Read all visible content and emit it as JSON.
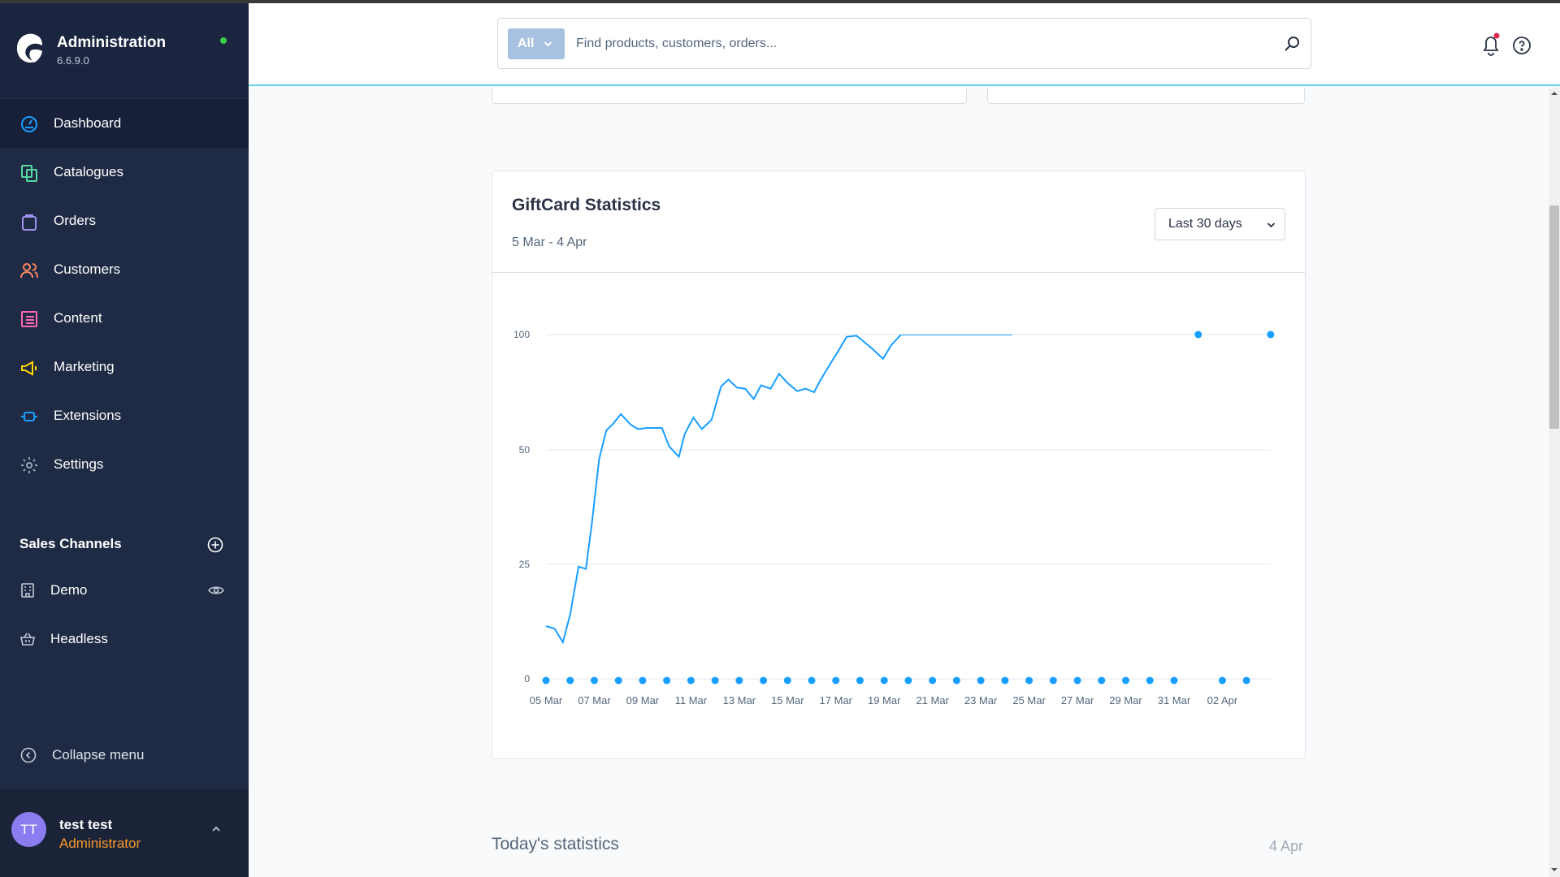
{
  "brand": {
    "title": "Administration",
    "version": "6.6.9.0"
  },
  "nav": {
    "items": [
      {
        "label": "Dashboard",
        "icon": "dashboard-icon",
        "color": "#189eff"
      },
      {
        "label": "Catalogues",
        "icon": "catalogue-icon",
        "color": "#57d9a3"
      },
      {
        "label": "Orders",
        "icon": "orders-icon",
        "color": "#a092f0"
      },
      {
        "label": "Customers",
        "icon": "customers-icon",
        "color": "#f88962"
      },
      {
        "label": "Content",
        "icon": "content-icon",
        "color": "#ff68b4"
      },
      {
        "label": "Marketing",
        "icon": "marketing-icon",
        "color": "#ffd700"
      },
      {
        "label": "Extensions",
        "icon": "extensions-icon",
        "color": "#189eff"
      },
      {
        "label": "Settings",
        "icon": "settings-icon",
        "color": "#9aa8b5"
      }
    ]
  },
  "sales_channels": {
    "header": "Sales Channels",
    "items": [
      {
        "label": "Demo",
        "icon": "storefront-icon"
      },
      {
        "label": "Headless",
        "icon": "basket-icon"
      }
    ]
  },
  "collapse_label": "Collapse menu",
  "user": {
    "initials": "TT",
    "name": "test test",
    "role": "Administrator"
  },
  "search": {
    "type_label": "All",
    "placeholder": "Find products, customers, orders..."
  },
  "giftcard": {
    "title": "GiftCard Statistics",
    "date_range": "5 Mar - 4 Apr",
    "range_select": "Last 30 days"
  },
  "chart_data": {
    "type": "line",
    "title": "GiftCard Statistics",
    "y_ticks": [
      "0",
      "25",
      "50",
      "100"
    ],
    "x_ticks": [
      "05 Mar",
      "07 Mar",
      "09 Mar",
      "11 Mar",
      "13 Mar",
      "15 Mar",
      "17 Mar",
      "19 Mar",
      "21 Mar",
      "23 Mar",
      "25 Mar",
      "27 Mar",
      "29 Mar",
      "31 Mar",
      "02 Apr"
    ],
    "grid": true,
    "line_color": "#189eff",
    "series": [
      {
        "line_x_days": [
          0,
          0.35,
          0.7,
          1.0,
          1.35,
          1.65,
          1.9,
          2.2,
          2.5,
          2.75,
          3.1,
          3.5,
          3.8,
          4.2,
          4.5,
          4.8,
          5.1,
          5.5,
          5.75,
          6.1,
          6.45,
          6.85,
          7.25,
          7.55,
          7.9,
          8.25,
          8.6,
          8.9,
          9.3,
          9.65,
          10.0,
          10.4,
          10.75,
          11.1,
          11.35,
          11.75,
          12.05,
          12.45,
          12.85,
          13.15,
          13.55,
          13.95,
          14.3,
          14.7,
          15.0,
          15.35,
          15.75,
          16.1,
          16.5,
          16.85,
          17.15,
          17.55,
          17.9,
          18.25,
          18.55,
          18.95,
          19.3
        ],
        "line_y": [
          11.5,
          11.0,
          8.0,
          14.0,
          24.5,
          24.0,
          34.0,
          48.0,
          58.5,
          61.0,
          65.5,
          61.0,
          59.0,
          59.5,
          59.5,
          59.5,
          51.5,
          48.5,
          57.0,
          64.0,
          59.0,
          63.0,
          77.5,
          80.5,
          77.0,
          76.5,
          72.0,
          78.0,
          76.5,
          83.0,
          79.0,
          75.5,
          76.5,
          75.0,
          80.0,
          87.0,
          92.0,
          99.0,
          99.5,
          97.0,
          93.5,
          89.5,
          95.5,
          100.0,
          100.0,
          100.0,
          100.0,
          100.0,
          100.0,
          100.0,
          100.0,
          100.0,
          100.0,
          100.0,
          100.0,
          100.0,
          100.0
        ],
        "points_x_days": [
          0,
          1,
          2,
          3,
          4,
          5,
          6,
          7,
          8,
          9,
          10,
          11,
          12,
          13,
          14,
          15,
          16,
          17,
          18,
          19,
          20,
          21,
          22,
          23,
          24,
          25,
          26,
          27,
          28,
          29,
          30
        ],
        "points_y": [
          0,
          0,
          0,
          0,
          0,
          0,
          0,
          0,
          0,
          0,
          0,
          0,
          0,
          0,
          0,
          0,
          0,
          0,
          0,
          0,
          0,
          0,
          0,
          0,
          0,
          0,
          0,
          100,
          0,
          0,
          100
        ]
      }
    ]
  },
  "today": {
    "title": "Today's statistics",
    "date": "4 Apr"
  }
}
